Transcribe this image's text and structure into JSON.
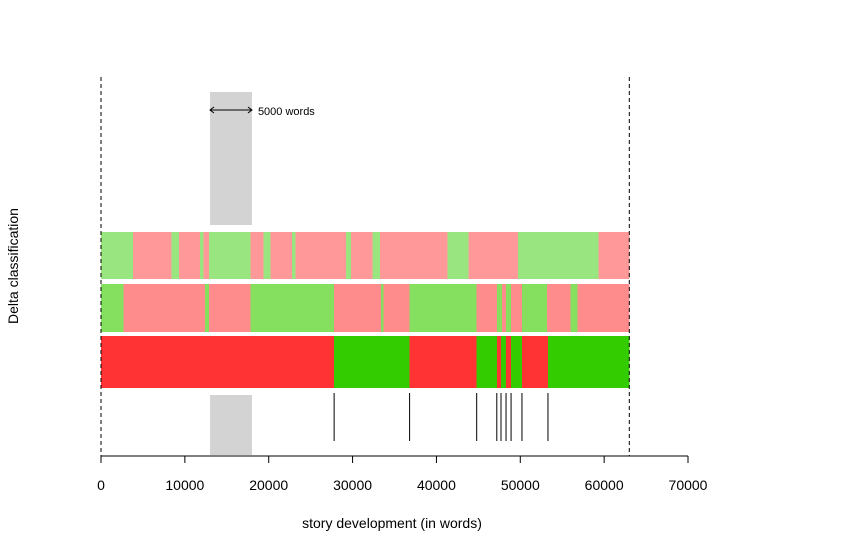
{
  "chart_data": {
    "type": "timeline",
    "xlabel": "story development (in words)",
    "ylabel": "Delta classification",
    "xlim": [
      0,
      70000
    ],
    "xticks": [
      0,
      10000,
      20000,
      30000,
      40000,
      50000,
      60000,
      70000
    ],
    "xtick_labels": [
      "0",
      "10000",
      "20000",
      "30000",
      "40000",
      "50000",
      "60000",
      "70000"
    ],
    "dashed_lines_x": [
      0,
      63000
    ],
    "window": {
      "start": 13000,
      "end": 18000,
      "label": "5000 words"
    },
    "colors": {
      "green": "#33cc00",
      "red": "#ff3333",
      "green_mid": "#85e060",
      "red_mid": "#ff8c8c",
      "green_light": "#99e680",
      "red_light": "#ff9999",
      "window": "#d3d3d3"
    },
    "rows": [
      {
        "level": "top",
        "segments": [
          {
            "start": 0,
            "end": 3800,
            "class": "green"
          },
          {
            "start": 3800,
            "end": 8400,
            "class": "red"
          },
          {
            "start": 8400,
            "end": 9300,
            "class": "green"
          },
          {
            "start": 9300,
            "end": 11800,
            "class": "red"
          },
          {
            "start": 11800,
            "end": 12200,
            "class": "green"
          },
          {
            "start": 12200,
            "end": 12900,
            "class": "red"
          },
          {
            "start": 12900,
            "end": 17800,
            "class": "green"
          },
          {
            "start": 17800,
            "end": 19400,
            "class": "red"
          },
          {
            "start": 19400,
            "end": 20200,
            "class": "green"
          },
          {
            "start": 20200,
            "end": 22800,
            "class": "red"
          },
          {
            "start": 22800,
            "end": 23200,
            "class": "green"
          },
          {
            "start": 23200,
            "end": 29200,
            "class": "red"
          },
          {
            "start": 29200,
            "end": 29800,
            "class": "green"
          },
          {
            "start": 29800,
            "end": 32400,
            "class": "red"
          },
          {
            "start": 32400,
            "end": 33300,
            "class": "green"
          },
          {
            "start": 33300,
            "end": 41300,
            "class": "red"
          },
          {
            "start": 41300,
            "end": 43800,
            "class": "green"
          },
          {
            "start": 43800,
            "end": 49700,
            "class": "red"
          },
          {
            "start": 49700,
            "end": 59300,
            "class": "green"
          },
          {
            "start": 59300,
            "end": 63000,
            "class": "red"
          }
        ]
      },
      {
        "level": "mid",
        "segments": [
          {
            "start": 0,
            "end": 2700,
            "class": "green"
          },
          {
            "start": 2700,
            "end": 12400,
            "class": "red"
          },
          {
            "start": 12400,
            "end": 12900,
            "class": "green"
          },
          {
            "start": 12900,
            "end": 17800,
            "class": "red"
          },
          {
            "start": 17800,
            "end": 27800,
            "class": "green"
          },
          {
            "start": 27800,
            "end": 33400,
            "class": "red"
          },
          {
            "start": 33400,
            "end": 33700,
            "class": "green"
          },
          {
            "start": 33700,
            "end": 36800,
            "class": "red"
          },
          {
            "start": 36800,
            "end": 44800,
            "class": "green"
          },
          {
            "start": 44800,
            "end": 47200,
            "class": "red"
          },
          {
            "start": 47200,
            "end": 47800,
            "class": "green"
          },
          {
            "start": 47800,
            "end": 48300,
            "class": "red"
          },
          {
            "start": 48300,
            "end": 48900,
            "class": "green"
          },
          {
            "start": 48900,
            "end": 50200,
            "class": "red"
          },
          {
            "start": 50200,
            "end": 53200,
            "class": "green"
          },
          {
            "start": 53200,
            "end": 56000,
            "class": "red"
          },
          {
            "start": 56000,
            "end": 56800,
            "class": "green"
          },
          {
            "start": 56800,
            "end": 63000,
            "class": "red"
          }
        ]
      },
      {
        "level": "bottom",
        "segments": [
          {
            "start": 0,
            "end": 27800,
            "class": "red"
          },
          {
            "start": 27800,
            "end": 36800,
            "class": "green"
          },
          {
            "start": 36800,
            "end": 44800,
            "class": "red"
          },
          {
            "start": 44800,
            "end": 47200,
            "class": "green"
          },
          {
            "start": 47200,
            "end": 47700,
            "class": "red"
          },
          {
            "start": 47700,
            "end": 48300,
            "class": "green"
          },
          {
            "start": 48300,
            "end": 48900,
            "class": "red"
          },
          {
            "start": 48900,
            "end": 50200,
            "class": "green"
          },
          {
            "start": 50200,
            "end": 53300,
            "class": "red"
          },
          {
            "start": 53300,
            "end": 63000,
            "class": "green"
          }
        ]
      }
    ],
    "breakpoints": [
      27800,
      36800,
      44800,
      47200,
      47700,
      48300,
      48900,
      50200,
      53300
    ]
  }
}
